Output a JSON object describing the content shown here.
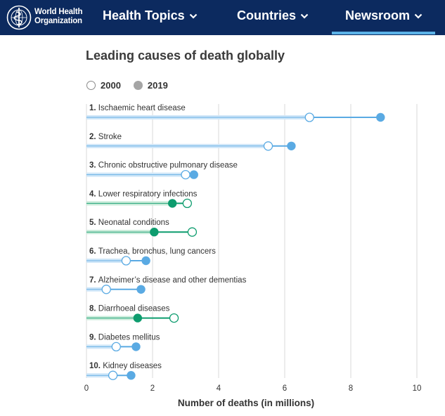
{
  "header": {
    "logo_line1": "World Health",
    "logo_line2": "Organization",
    "nav": [
      {
        "label": "Health Topics",
        "active": false
      },
      {
        "label": "Countries",
        "active": false
      },
      {
        "label": "Newsroom",
        "active": true
      }
    ]
  },
  "colors": {
    "nav_bg": "#0c2a5f",
    "nav_active": "#5bb2e7",
    "blue": "#5aaae3",
    "blue_band": "#cfe6f8",
    "green": "#0d9c6e",
    "green_band": "#c9ebd9",
    "grid": "#d9d9d9"
  },
  "chart_data": {
    "type": "dumbbell",
    "title": "Leading causes of death globally",
    "xlabel": "Number of deaths (in millions)",
    "xlim": [
      0,
      10
    ],
    "xticks": [
      0,
      2,
      4,
      6,
      8,
      10
    ],
    "legend": [
      {
        "label": "2000",
        "style": "open"
      },
      {
        "label": "2019",
        "style": "filled"
      }
    ],
    "categories": [
      {
        "rank": "1.",
        "name": "Ischaemic heart disease",
        "v2000": 6.75,
        "v2019": 8.9,
        "trend": "increase"
      },
      {
        "rank": "2.",
        "name": "Stroke",
        "v2000": 5.5,
        "v2019": 6.2,
        "trend": "increase"
      },
      {
        "rank": "3.",
        "name": "Chronic obstructive pulmonary disease",
        "v2000": 3.0,
        "v2019": 3.25,
        "trend": "increase"
      },
      {
        "rank": "4.",
        "name": "Lower respiratory infections",
        "v2000": 3.05,
        "v2019": 2.6,
        "trend": "decrease"
      },
      {
        "rank": "5.",
        "name": "Neonatal conditions",
        "v2000": 3.2,
        "v2019": 2.05,
        "trend": "decrease"
      },
      {
        "rank": "6.",
        "name": "Trachea, bronchus, lung cancers",
        "v2000": 1.2,
        "v2019": 1.8,
        "trend": "increase"
      },
      {
        "rank": "7.",
        "name": "Alzheimer’s disease and other dementias",
        "v2000": 0.6,
        "v2019": 1.65,
        "trend": "increase"
      },
      {
        "rank": "8.",
        "name": "Diarrhoeal diseases",
        "v2000": 2.65,
        "v2019": 1.55,
        "trend": "decrease"
      },
      {
        "rank": "9.",
        "name": "Diabetes mellitus",
        "v2000": 0.9,
        "v2019": 1.5,
        "trend": "increase"
      },
      {
        "rank": "10.",
        "name": "Kidney diseases",
        "v2000": 0.8,
        "v2019": 1.35,
        "trend": "increase"
      }
    ]
  }
}
